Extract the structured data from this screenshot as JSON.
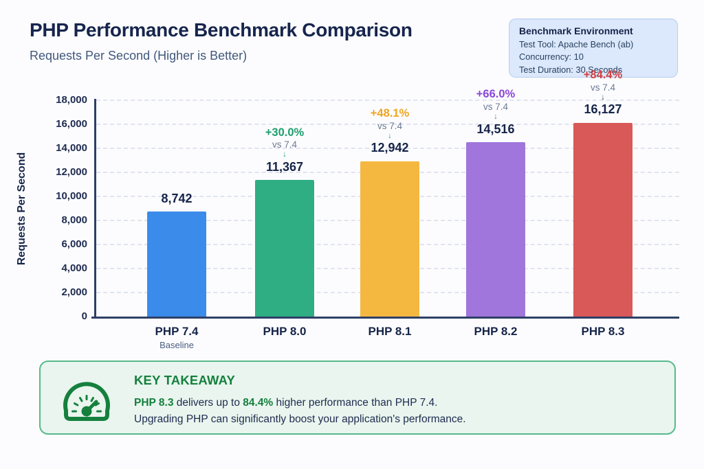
{
  "header": {
    "title": "PHP Performance Benchmark Comparison",
    "subtitle": "Requests Per Second (Higher is Better)"
  },
  "environment": {
    "title": "Benchmark Environment",
    "lines": [
      "Test Tool: Apache Bench  (ab)",
      "Concurrency: 10",
      "Test Duration: 30 Seconds"
    ]
  },
  "chart_data": {
    "type": "bar",
    "title": "PHP Performance Benchmark Comparison",
    "subtitle": "Requests Per Second (Higher is Better)",
    "xlabel": "",
    "ylabel": "Requests Per Second",
    "ylim": [
      0,
      18000
    ],
    "ytick_step": 2000,
    "ytick_labels": [
      "0",
      "2,000",
      "4,000",
      "6,000",
      "8,000",
      "10,000",
      "12,000",
      "14,000",
      "16,000",
      "18,000"
    ],
    "grid": "horizontal-dashed",
    "legend": "none",
    "categories": [
      "PHP 7.4",
      "PHP 8.0",
      "PHP 8.1",
      "PHP 8.2",
      "PHP 8.3"
    ],
    "values": [
      8742,
      11367,
      12942,
      14516,
      16127
    ],
    "value_labels": [
      "8,742",
      "11,367",
      "12,942",
      "14,516",
      "16,127"
    ],
    "bar_colors": [
      "#3b8bea",
      "#2fae83",
      "#f4b841",
      "#a076dc",
      "#d95858"
    ],
    "pct_labels": [
      "",
      "+30.0%",
      "+48.1%",
      "+66.0%",
      "+84.4%"
    ],
    "pct_colors": [
      "",
      "#1d9e6e",
      "#f0a51f",
      "#8b46d8",
      "#d13f3f"
    ],
    "arrow_glyph": "↓",
    "arrow_colors": [
      "",
      "#1d9e6e",
      "#2e9e7e",
      "#64748b",
      "#3b4a6b"
    ],
    "vs_label": "vs 7.4",
    "category_sublabels": [
      "Baseline",
      "",
      "",
      "",
      ""
    ]
  },
  "takeaway": {
    "heading": "KEY TAKEAWAY",
    "line1_parts": [
      {
        "text": "PHP 8.3",
        "highlight": true
      },
      {
        "text": " delivers up to ",
        "highlight": false
      },
      {
        "text": "84.4%",
        "highlight": true
      },
      {
        "text": " higher performance than PHP 7.4.",
        "highlight": false
      }
    ],
    "line2": "Upgrading PHP can significantly boost your application's performance.",
    "accent_color": "#15803d",
    "icon": "speedometer-gauge-icon"
  }
}
